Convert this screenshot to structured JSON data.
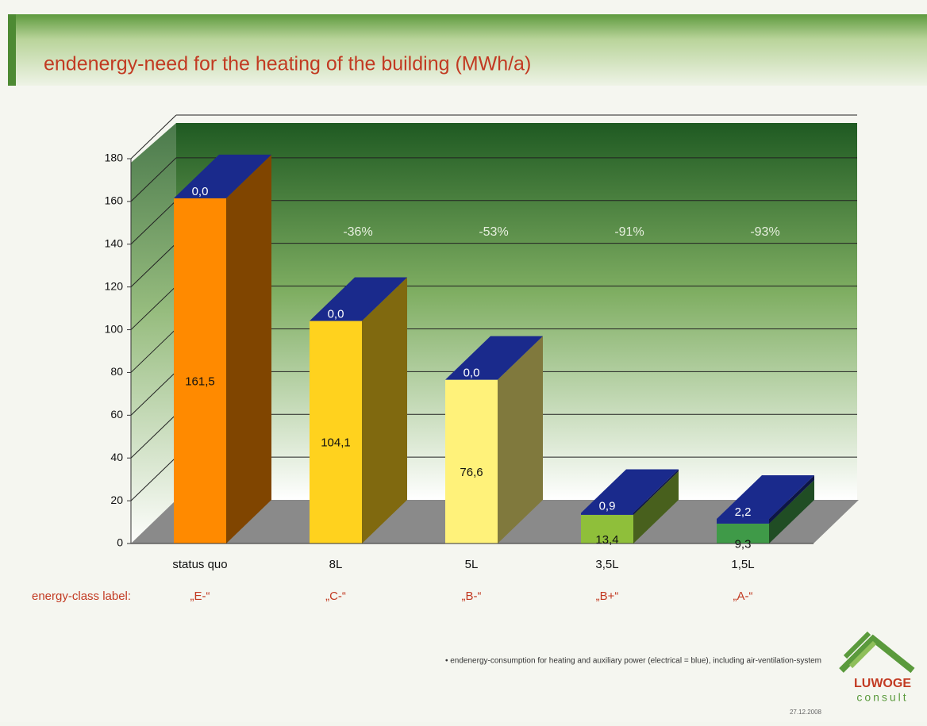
{
  "chart_data": {
    "type": "bar3d_stacked",
    "title": "endenergy-need for the heating of the building (MWh/a)",
    "categories": [
      "status quo",
      "8L",
      "5L",
      "3,5L",
      "1,5L"
    ],
    "series": [
      {
        "colors": [
          "#ff8a00",
          "#ffd21e",
          "#fff27a",
          "#8fbf3a",
          "#3f9a48"
        ],
        "values": [
          161.5,
          104.1,
          76.6,
          13.4,
          9.3
        ],
        "value_labels": [
          "161,5",
          "104,1",
          "76,6",
          "13,4",
          "9,3"
        ]
      },
      {
        "color": "#1a2a8c",
        "values": [
          0.0,
          0.0,
          0.0,
          0.9,
          2.2
        ],
        "value_labels": [
          "0,0",
          "0,0",
          "0,0",
          "0,9",
          "2,2"
        ]
      }
    ],
    "annotations": [
      "-36%",
      "-53%",
      "-91%",
      "-93%"
    ],
    "class_caption": "energy-class label:",
    "class_labels": [
      "„E-“",
      "„C-“",
      "„B-“",
      "„B+“",
      "„A-“"
    ],
    "ylim": [
      0,
      180
    ],
    "yticks": [
      0,
      20,
      40,
      60,
      80,
      100,
      120,
      140,
      160,
      180
    ],
    "grid": true,
    "footnote": "• endenergy-consumption for heating  and auxiliary power (electrical = blue), including air-ventilation-system",
    "date": "27.12.2008",
    "logo": {
      "name": "LUWOGE",
      "sub": "consult"
    }
  }
}
